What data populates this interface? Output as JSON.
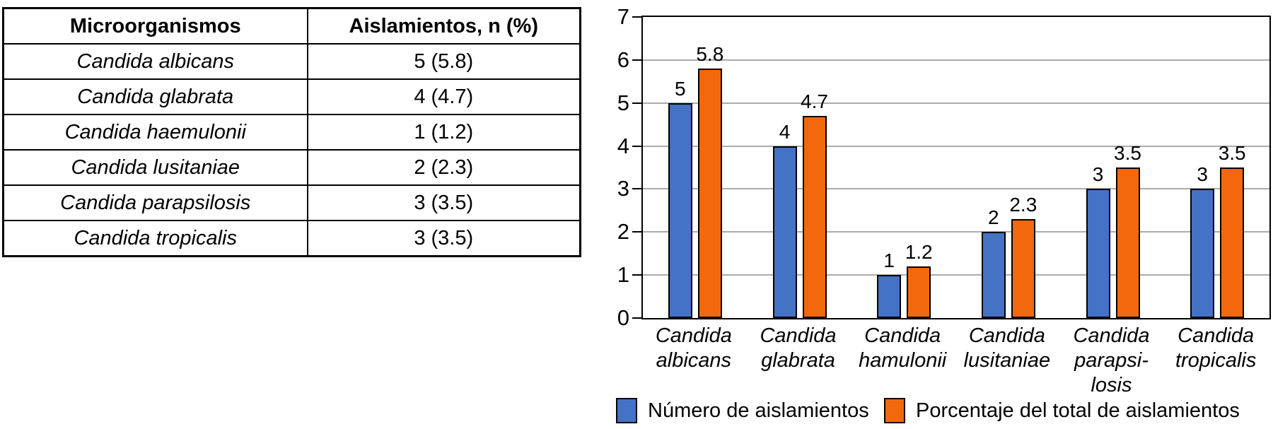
{
  "table": {
    "headers": [
      "Microorganismos",
      "Aislamientos, n (%)"
    ],
    "rows": [
      {
        "species": "Candida albicans",
        "value": "5 (5.8)"
      },
      {
        "species": "Candida glabrata",
        "value": "4 (4.7)"
      },
      {
        "species": "Candida haemulonii",
        "value": "1 (1.2)"
      },
      {
        "species": "Candida lusitaniae",
        "value": "2 (2.3)"
      },
      {
        "species": "Candida parapsilosis",
        "value": "3 (3.5)"
      },
      {
        "species": "Candida tropicalis",
        "value": "3 (3.5)"
      }
    ]
  },
  "chart_data": {
    "type": "bar",
    "title": "",
    "xlabel": "",
    "ylabel": "",
    "categories": [
      "Candida albicans",
      "Candida glabrata",
      "Candida hamulonii",
      "Candida lusitaniae",
      "Candida parapsilosis",
      "Candida tropicalis"
    ],
    "category_label_lines": [
      [
        "Candida",
        "albicans"
      ],
      [
        "Candida",
        "glabrata"
      ],
      [
        "Candida",
        "hamulonii"
      ],
      [
        "Candida",
        "lusitaniae"
      ],
      [
        "Candida",
        "parapsi-",
        "losis"
      ],
      [
        "Candida",
        "tropicalis"
      ]
    ],
    "series": [
      {
        "name": "Número de aislamientos",
        "color": "#4472C4",
        "values": [
          5,
          4,
          1,
          2,
          3,
          3
        ],
        "labels": [
          "5",
          "4",
          "1",
          "2",
          "3",
          "3"
        ]
      },
      {
        "name": "Porcentaje del total de aislamientos",
        "color": "#F3680D",
        "values": [
          5.8,
          4.7,
          1.2,
          2.3,
          3.5,
          3.5
        ],
        "labels": [
          "5.8",
          "4.7",
          "1.2",
          "2.3",
          "3.5",
          "3.5"
        ]
      }
    ],
    "ylim": [
      0,
      7
    ],
    "yticks": [
      0,
      1,
      2,
      3,
      4,
      5,
      6,
      7
    ],
    "grid": true,
    "legend_position": "bottom",
    "colors": {
      "gridline": "#ACACAC",
      "axis_border": "#000000",
      "background": "#FFFFFF"
    }
  }
}
